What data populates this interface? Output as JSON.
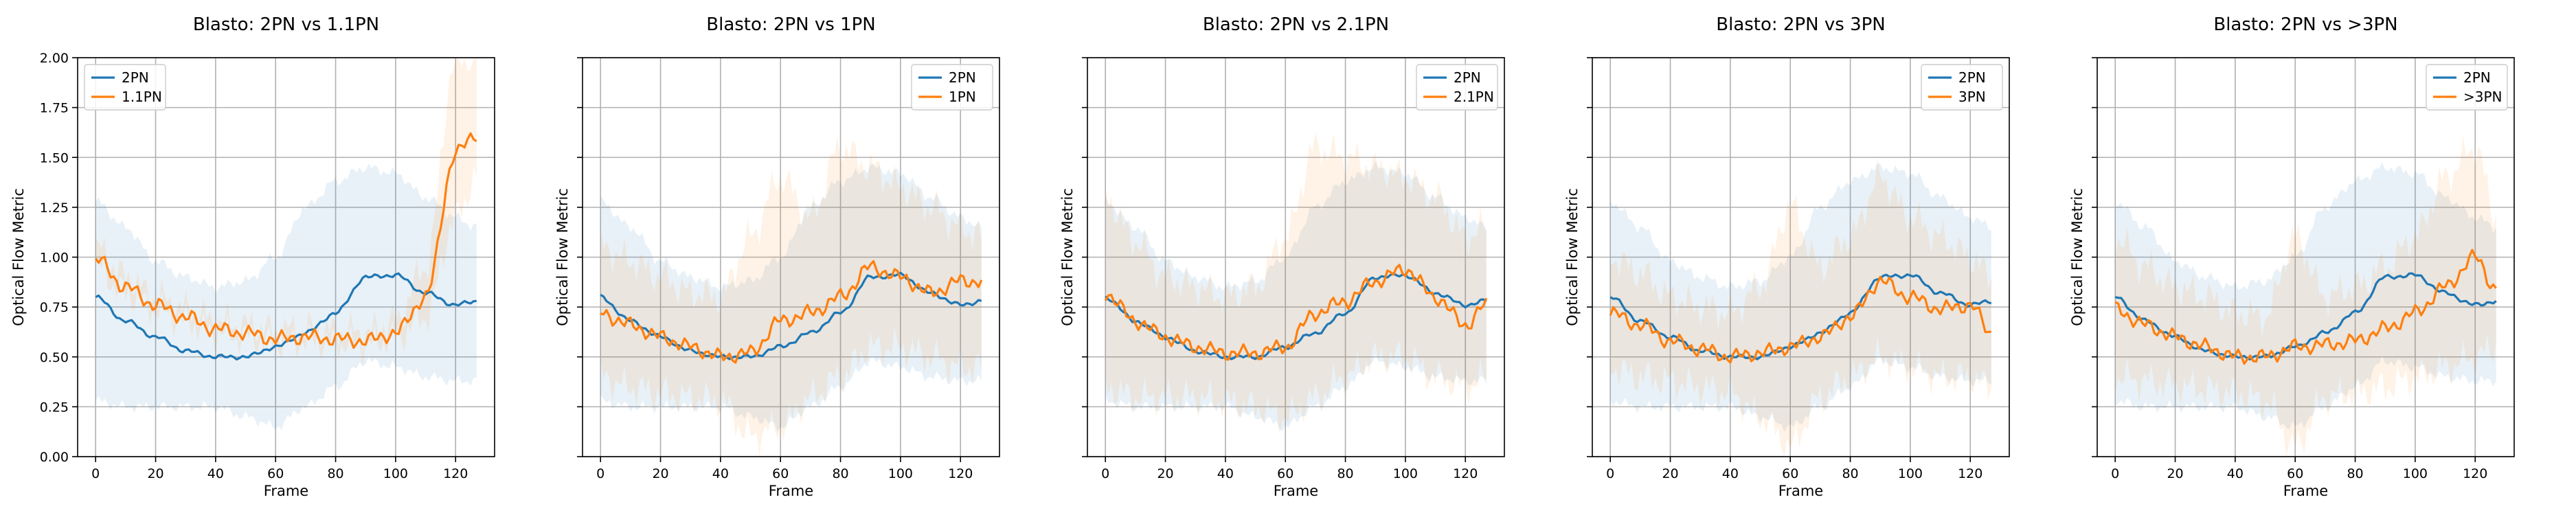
{
  "chart_data": [
    {
      "type": "line",
      "title": "Blasto: 2PN vs 1.1PN",
      "xlabel": "Frame",
      "ylabel": "Optical Flow Metric",
      "xlim": [
        -6,
        133
      ],
      "ylim": [
        0,
        2.0
      ],
      "xticks": [
        "0",
        "20",
        "40",
        "60",
        "80",
        "100",
        "120"
      ],
      "yticks": [
        "0.00",
        "0.25",
        "0.50",
        "0.75",
        "1.00",
        "1.25",
        "1.50",
        "1.75",
        "2.00"
      ],
      "grid": true,
      "legend_position": "upper-left",
      "x_knots": [
        0,
        10,
        20,
        30,
        40,
        50,
        60,
        70,
        80,
        90,
        100,
        110,
        120,
        127
      ],
      "series": [
        {
          "name": "2PN",
          "color": "#1f77b4",
          "mean": [
            0.8,
            0.68,
            0.6,
            0.53,
            0.5,
            0.5,
            0.55,
            0.62,
            0.72,
            0.9,
            0.91,
            0.82,
            0.76,
            0.78
          ],
          "band_low": [
            0.28,
            0.25,
            0.25,
            0.25,
            0.25,
            0.2,
            0.15,
            0.25,
            0.35,
            0.48,
            0.45,
            0.4,
            0.38,
            0.38
          ],
          "band_high": [
            1.28,
            1.15,
            0.98,
            0.9,
            0.85,
            0.88,
            1.0,
            1.25,
            1.38,
            1.45,
            1.42,
            1.3,
            1.2,
            1.15
          ]
        },
        {
          "name": "1.1PN",
          "color": "#ff7f0e",
          "mean": [
            0.99,
            0.85,
            0.76,
            0.7,
            0.64,
            0.62,
            0.59,
            0.6,
            0.59,
            0.58,
            0.62,
            0.8,
            1.52,
            1.62
          ],
          "band_low": [
            0.95,
            0.82,
            0.74,
            0.68,
            0.62,
            0.6,
            0.57,
            0.58,
            0.57,
            0.56,
            0.6,
            0.7,
            1.2,
            1.4
          ],
          "band_high": [
            1.05,
            0.9,
            0.8,
            0.74,
            0.68,
            0.66,
            0.63,
            0.64,
            0.63,
            0.62,
            0.68,
            0.95,
            2.0,
            2.0
          ]
        }
      ]
    },
    {
      "type": "line",
      "title": "Blasto: 2PN vs 1PN",
      "xlabel": "Frame",
      "ylabel": "Optical Flow Metric",
      "xlim": [
        -6,
        133
      ],
      "ylim": [
        0,
        2.0
      ],
      "xticks": [
        "0",
        "20",
        "40",
        "60",
        "80",
        "100",
        "120"
      ],
      "yticks": [],
      "grid": true,
      "legend_position": "upper-right",
      "x_knots": [
        0,
        10,
        20,
        30,
        40,
        50,
        60,
        70,
        80,
        90,
        100,
        110,
        120,
        127
      ],
      "series": [
        {
          "name": "2PN",
          "color": "#1f77b4",
          "mean": [
            0.8,
            0.68,
            0.6,
            0.53,
            0.5,
            0.5,
            0.55,
            0.62,
            0.72,
            0.9,
            0.91,
            0.82,
            0.76,
            0.78
          ],
          "band_low": [
            0.28,
            0.25,
            0.25,
            0.25,
            0.25,
            0.2,
            0.15,
            0.25,
            0.35,
            0.48,
            0.45,
            0.4,
            0.38,
            0.38
          ],
          "band_high": [
            1.28,
            1.15,
            0.98,
            0.9,
            0.85,
            0.88,
            1.0,
            1.25,
            1.38,
            1.45,
            1.42,
            1.3,
            1.2,
            1.15
          ]
        },
        {
          "name": "1PN",
          "color": "#ff7f0e",
          "mean": [
            0.72,
            0.66,
            0.6,
            0.55,
            0.5,
            0.52,
            0.68,
            0.72,
            0.8,
            0.95,
            0.9,
            0.82,
            0.88,
            0.88
          ],
          "band_low": [
            0.4,
            0.35,
            0.32,
            0.3,
            0.28,
            0.1,
            0.15,
            0.3,
            0.4,
            0.55,
            0.55,
            0.5,
            0.45,
            0.45
          ],
          "band_high": [
            1.05,
            0.98,
            0.9,
            0.82,
            0.8,
            1.1,
            1.4,
            1.2,
            1.55,
            1.45,
            1.35,
            1.25,
            1.15,
            1.1
          ]
        }
      ]
    },
    {
      "type": "line",
      "title": "Blasto: 2PN vs 2.1PN",
      "xlabel": "Frame",
      "ylabel": "Optical Flow Metric",
      "xlim": [
        -6,
        133
      ],
      "ylim": [
        0,
        2.0
      ],
      "xticks": [
        "0",
        "20",
        "40",
        "60",
        "80",
        "100",
        "120"
      ],
      "yticks": [],
      "grid": true,
      "legend_position": "upper-right",
      "x_knots": [
        0,
        10,
        20,
        30,
        40,
        50,
        60,
        70,
        80,
        90,
        100,
        110,
        120,
        127
      ],
      "series": [
        {
          "name": "2PN",
          "color": "#1f77b4",
          "mean": [
            0.8,
            0.68,
            0.6,
            0.53,
            0.5,
            0.5,
            0.55,
            0.62,
            0.72,
            0.9,
            0.91,
            0.82,
            0.76,
            0.78
          ],
          "band_low": [
            0.28,
            0.25,
            0.25,
            0.25,
            0.25,
            0.2,
            0.15,
            0.25,
            0.35,
            0.48,
            0.45,
            0.4,
            0.38,
            0.38
          ],
          "band_high": [
            1.28,
            1.15,
            0.98,
            0.9,
            0.85,
            0.88,
            1.0,
            1.25,
            1.38,
            1.45,
            1.42,
            1.3,
            1.2,
            1.15
          ]
        },
        {
          "name": "2.1PN",
          "color": "#ff7f0e",
          "mean": [
            0.82,
            0.68,
            0.6,
            0.55,
            0.52,
            0.52,
            0.55,
            0.72,
            0.78,
            0.88,
            0.94,
            0.8,
            0.66,
            0.76
          ],
          "band_low": [
            0.35,
            0.3,
            0.3,
            0.3,
            0.28,
            0.25,
            0.2,
            0.3,
            0.4,
            0.5,
            0.5,
            0.4,
            0.35,
            0.4
          ],
          "band_high": [
            1.3,
            1.08,
            0.9,
            0.85,
            0.8,
            0.85,
            1.1,
            1.55,
            1.5,
            1.45,
            1.4,
            1.3,
            1.1,
            1.15
          ]
        }
      ]
    },
    {
      "type": "line",
      "title": "Blasto: 2PN vs 3PN",
      "xlabel": "Frame",
      "ylabel": "Optical Flow Metric",
      "xlim": [
        -6,
        133
      ],
      "ylim": [
        0,
        2.0
      ],
      "xticks": [
        "0",
        "20",
        "40",
        "60",
        "80",
        "100",
        "120"
      ],
      "yticks": [],
      "grid": true,
      "legend_position": "upper-right",
      "x_knots": [
        0,
        10,
        20,
        30,
        40,
        50,
        60,
        70,
        80,
        90,
        100,
        110,
        120,
        127
      ],
      "series": [
        {
          "name": "2PN",
          "color": "#1f77b4",
          "mean": [
            0.8,
            0.68,
            0.6,
            0.53,
            0.5,
            0.5,
            0.55,
            0.62,
            0.72,
            0.9,
            0.91,
            0.82,
            0.76,
            0.78
          ],
          "band_low": [
            0.28,
            0.25,
            0.25,
            0.25,
            0.25,
            0.2,
            0.15,
            0.25,
            0.35,
            0.48,
            0.45,
            0.4,
            0.38,
            0.38
          ],
          "band_high": [
            1.28,
            1.15,
            0.98,
            0.9,
            0.85,
            0.88,
            1.0,
            1.25,
            1.38,
            1.45,
            1.42,
            1.3,
            1.2,
            1.15
          ]
        },
        {
          "name": "3PN",
          "color": "#ff7f0e",
          "mean": [
            0.72,
            0.66,
            0.58,
            0.54,
            0.5,
            0.52,
            0.55,
            0.6,
            0.7,
            0.88,
            0.8,
            0.74,
            0.76,
            0.62
          ],
          "band_low": [
            0.45,
            0.4,
            0.38,
            0.35,
            0.32,
            0.2,
            0.05,
            0.3,
            0.4,
            0.5,
            0.45,
            0.4,
            0.4,
            0.35
          ],
          "band_high": [
            1.0,
            0.92,
            0.8,
            0.75,
            0.72,
            0.85,
            1.25,
            0.95,
            1.1,
            1.4,
            1.2,
            1.1,
            1.0,
            0.9
          ]
        }
      ]
    },
    {
      "type": "line",
      "title": "Blasto: 2PN vs >3PN",
      "xlabel": "Frame",
      "ylabel": "Optical Flow Metric",
      "xlim": [
        -6,
        133
      ],
      "ylim": [
        0,
        2.0
      ],
      "xticks": [
        "0",
        "20",
        "40",
        "60",
        "80",
        "100",
        "120"
      ],
      "yticks": [],
      "grid": true,
      "legend_position": "upper-right",
      "x_knots": [
        0,
        10,
        20,
        30,
        40,
        50,
        60,
        70,
        80,
        90,
        100,
        110,
        120,
        127
      ],
      "series": [
        {
          "name": "2PN",
          "color": "#1f77b4",
          "mean": [
            0.8,
            0.68,
            0.6,
            0.53,
            0.5,
            0.5,
            0.55,
            0.62,
            0.72,
            0.9,
            0.91,
            0.82,
            0.76,
            0.78
          ],
          "band_low": [
            0.28,
            0.25,
            0.25,
            0.25,
            0.25,
            0.2,
            0.15,
            0.25,
            0.35,
            0.48,
            0.45,
            0.4,
            0.38,
            0.38
          ],
          "band_high": [
            1.28,
            1.15,
            0.98,
            0.9,
            0.85,
            0.88,
            1.0,
            1.25,
            1.38,
            1.45,
            1.42,
            1.3,
            1.2,
            1.15
          ]
        },
        {
          "name": ">3PN",
          "color": "#ff7f0e",
          "mean": [
            0.74,
            0.66,
            0.6,
            0.55,
            0.5,
            0.5,
            0.55,
            0.56,
            0.58,
            0.64,
            0.72,
            0.85,
            1.0,
            0.84
          ],
          "band_low": [
            0.4,
            0.38,
            0.36,
            0.34,
            0.32,
            0.28,
            0.05,
            0.3,
            0.32,
            0.35,
            0.4,
            0.45,
            0.5,
            0.55
          ],
          "band_high": [
            1.1,
            0.95,
            0.85,
            0.8,
            0.72,
            0.7,
            1.1,
            0.8,
            0.85,
            0.95,
            1.1,
            1.4,
            1.55,
            1.2
          ]
        }
      ]
    }
  ]
}
